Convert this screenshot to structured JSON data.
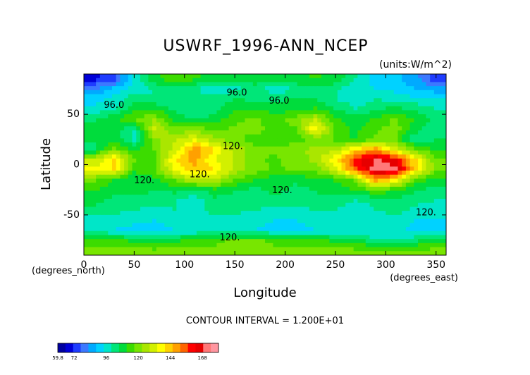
{
  "chart_data": {
    "type": "heatmap",
    "title": "USWRF_1996-ANN_NCEP",
    "units_label": "(units:W/m^2)",
    "xlabel": "Longitude",
    "ylabel": "Latitude",
    "x_units_label": "(degrees_east)",
    "y_units_label": "(degrees_north)",
    "xlim": [
      0,
      360
    ],
    "ylim": [
      -90,
      90
    ],
    "x_ticks": [
      0,
      50,
      100,
      150,
      200,
      250,
      300,
      350
    ],
    "y_ticks": [
      -50,
      0,
      50
    ],
    "contour_interval_text": "CONTOUR INTERVAL = 1.200E+01",
    "contour_labels": [
      {
        "text": "96.0",
        "x": 152,
        "y": 71
      },
      {
        "text": "96.0",
        "x": 30,
        "y": 59
      },
      {
        "text": "96.0",
        "x": 194,
        "y": 63
      },
      {
        "text": "120.",
        "x": 148,
        "y": 18
      },
      {
        "text": "120.",
        "x": 115,
        "y": -10
      },
      {
        "text": "120.",
        "x": 60,
        "y": -16
      },
      {
        "text": "120.",
        "x": 197,
        "y": -26
      },
      {
        "text": "120.",
        "x": 340,
        "y": -48
      },
      {
        "text": "120.",
        "x": 145,
        "y": -73
      }
    ],
    "colorbar": {
      "tick_labels": [
        "59.8",
        "72",
        "96",
        "120",
        "144",
        "168"
      ],
      "tick_values": [
        59.8,
        72,
        96,
        120,
        144,
        168
      ],
      "range": [
        59.8,
        180
      ],
      "colors": [
        "#0000a0",
        "#0000d8",
        "#1e3cff",
        "#3c78ff",
        "#00aaff",
        "#00d2ff",
        "#00e6c8",
        "#00e678",
        "#00dc3c",
        "#3cdc00",
        "#78e600",
        "#aae600",
        "#d2f000",
        "#ffff00",
        "#ffd200",
        "#ffa000",
        "#ff6400",
        "#ff0000",
        "#e60000",
        "#ff7878",
        "#ff96a0"
      ]
    },
    "field_grid": {
      "note_units": "W/m^2",
      "lat_centers": [
        85,
        75,
        65,
        55,
        45,
        35,
        25,
        15,
        5,
        -5,
        -15,
        -25,
        -35,
        -45,
        -55,
        -65,
        -75,
        -85
      ],
      "lon_centers": [
        10,
        30,
        50,
        70,
        90,
        110,
        130,
        150,
        170,
        190,
        210,
        230,
        250,
        270,
        290,
        310,
        330,
        350
      ],
      "values": [
        [
          70,
          75,
          95,
          110,
          115,
          112,
          110,
          108,
          110,
          108,
          110,
          112,
          110,
          100,
          92,
          90,
          85,
          72
        ],
        [
          82,
          90,
          96,
          100,
          104,
          100,
          96,
          98,
          102,
          96,
          100,
          104,
          100,
          96,
          94,
          92,
          88,
          86
        ],
        [
          92,
          96,
          104,
          100,
          102,
          104,
          102,
          106,
          104,
          104,
          106,
          106,
          100,
          96,
          100,
          98,
          96,
          94
        ],
        [
          96,
          100,
          110,
          112,
          104,
          100,
          104,
          110,
          112,
          108,
          110,
          112,
          106,
          100,
          104,
          108,
          104,
          100
        ],
        [
          104,
          110,
          118,
          122,
          110,
          104,
          108,
          116,
          118,
          114,
          120,
          128,
          112,
          108,
          112,
          118,
          110,
          104
        ],
        [
          112,
          108,
          100,
          130,
          118,
          120,
          116,
          118,
          120,
          114,
          116,
          140,
          116,
          110,
          116,
          120,
          108,
          100
        ],
        [
          106,
          110,
          98,
          120,
          128,
          134,
          124,
          118,
          114,
          112,
          114,
          118,
          116,
          110,
          118,
          116,
          100,
          106
        ],
        [
          104,
          120,
          110,
          118,
          130,
          150,
          140,
          126,
          120,
          118,
          122,
          124,
          126,
          140,
          150,
          130,
          118,
          110
        ],
        [
          128,
          142,
          118,
          114,
          140,
          148,
          134,
          128,
          118,
          116,
          120,
          124,
          140,
          160,
          170,
          165,
          140,
          118
        ],
        [
          135,
          140,
          112,
          116,
          136,
          144,
          140,
          126,
          120,
          116,
          118,
          120,
          130,
          156,
          172,
          170,
          140,
          120
        ],
        [
          118,
          110,
          108,
          110,
          118,
          130,
          128,
          118,
          112,
          108,
          106,
          110,
          112,
          118,
          150,
          140,
          116,
          108
        ],
        [
          112,
          108,
          108,
          106,
          108,
          104,
          110,
          106,
          104,
          108,
          104,
          106,
          108,
          112,
          118,
          112,
          106,
          104
        ],
        [
          108,
          104,
          104,
          102,
          100,
          96,
          104,
          104,
          104,
          102,
          102,
          104,
          104,
          100,
          102,
          104,
          102,
          100
        ],
        [
          104,
          102,
          100,
          98,
          100,
          98,
          102,
          102,
          100,
          98,
          98,
          100,
          100,
          96,
          100,
          102,
          98,
          96
        ],
        [
          98,
          96,
          96,
          94,
          96,
          96,
          98,
          96,
          96,
          94,
          94,
          96,
          96,
          96,
          96,
          98,
          94,
          94
        ],
        [
          96,
          94,
          92,
          92,
          94,
          94,
          96,
          94,
          94,
          92,
          92,
          94,
          94,
          94,
          94,
          96,
          92,
          92
        ],
        [
          112,
          112,
          110,
          108,
          110,
          112,
          116,
          118,
          118,
          116,
          114,
          112,
          110,
          108,
          100,
          98,
          104,
          110
        ],
        [
          118,
          118,
          118,
          118,
          118,
          118,
          118,
          118,
          118,
          118,
          118,
          118,
          118,
          118,
          118,
          118,
          118,
          118
        ]
      ]
    }
  }
}
